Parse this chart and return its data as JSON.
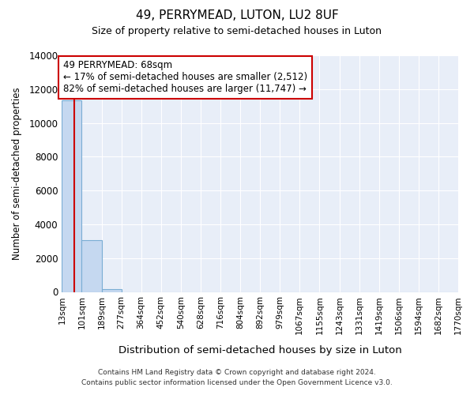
{
  "title": "49, PERRYMEAD, LUTON, LU2 8UF",
  "subtitle": "Size of property relative to semi-detached houses in Luton",
  "xlabel": "Distribution of semi-detached houses by size in Luton",
  "ylabel": "Number of semi-detached properties",
  "property_size": 68,
  "annotation_line1": "49 PERRYMEAD: 68sqm",
  "annotation_line2": "← 17% of semi-detached houses are smaller (2,512)",
  "annotation_line3": "82% of semi-detached houses are larger (11,747) →",
  "bin_edges": [
    13,
    101,
    189,
    277,
    364,
    452,
    540,
    628,
    716,
    804,
    892,
    979,
    1067,
    1155,
    1243,
    1331,
    1419,
    1506,
    1594,
    1682,
    1770
  ],
  "bin_labels": [
    "13sqm",
    "101sqm",
    "189sqm",
    "277sqm",
    "364sqm",
    "452sqm",
    "540sqm",
    "628sqm",
    "716sqm",
    "804sqm",
    "892sqm",
    "979sqm",
    "1067sqm",
    "1155sqm",
    "1243sqm",
    "1331sqm",
    "1419sqm",
    "1506sqm",
    "1594sqm",
    "1682sqm",
    "1770sqm"
  ],
  "counts": [
    11350,
    3050,
    160,
    0,
    0,
    0,
    0,
    0,
    0,
    0,
    0,
    0,
    0,
    0,
    0,
    0,
    0,
    0,
    0,
    0
  ],
  "bar_color": "#c5d8f0",
  "bar_edge_color": "#7aadd4",
  "vline_color": "#cc0000",
  "ylim": [
    0,
    14000
  ],
  "yticks": [
    0,
    2000,
    4000,
    6000,
    8000,
    10000,
    12000,
    14000
  ],
  "background_color": "#ffffff",
  "plot_bg_color": "#e8eef8",
  "grid_color": "#ffffff",
  "annotation_box_fill": "#ffffff",
  "annotation_box_edge": "#cc0000",
  "footer_line1": "Contains HM Land Registry data © Crown copyright and database right 2024.",
  "footer_line2": "Contains public sector information licensed under the Open Government Licence v3.0.",
  "figsize": [
    6.0,
    5.0
  ],
  "dpi": 100
}
